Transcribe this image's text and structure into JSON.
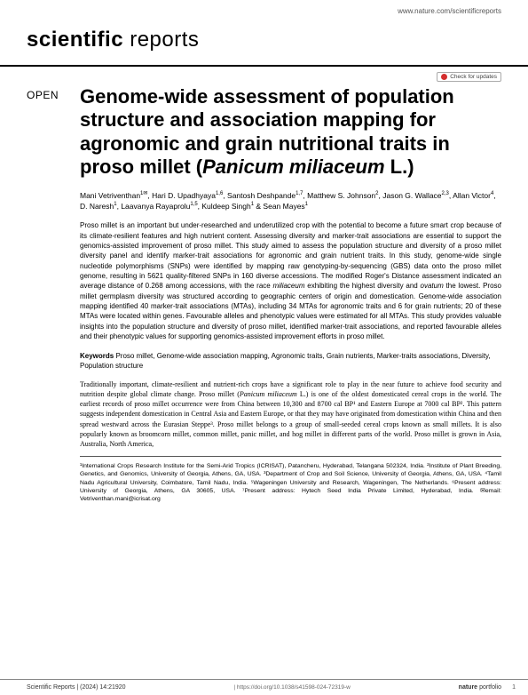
{
  "top_url": "www.nature.com/scientificreports",
  "journal": {
    "word1": "scientific",
    "word2": "reports"
  },
  "updates_label": "Check for updates",
  "open_tag": "OPEN",
  "title_plain": "Genome-wide assessment of population structure and association mapping for agronomic and grain nutritional traits in proso millet (",
  "title_species": "Panicum miliaceum",
  "title_tail": " L.)",
  "authors_html": "Mani Vetriventhan<sup>1✉</sup>, Hari D. Upadhyaya<sup>1,6</sup>, Santosh Deshpande<sup>1,7</sup>, Matthew S. Johnson<sup>2</sup>, Jason G. Wallace<sup>2,3</sup>, Allan Victor<sup>4</sup>, D. Naresh<sup>1</sup>, Laavanya Rayaprolu<sup>1,5</sup>, Kuldeep Singh<sup>1</sup> & Sean Mayes<sup>1</sup>",
  "abstract": "Proso millet is an important but under-researched and underutilized crop with the potential to become a future smart crop because of its climate-resilient features and high nutrient content. Assessing diversity and marker-trait associations are essential to support the genomics-assisted improvement of proso millet. This study aimed to assess the population structure and diversity of a proso millet diversity panel and identify marker-trait associations for agronomic and grain nutrient traits. In this study, genome-wide single nucleotide polymorphisms (SNPs) were identified by mapping raw genotyping-by-sequencing (GBS) data onto the proso millet genome, resulting in 5621 quality-filtered SNPs in 160 diverse accessions. The modified Roger's Distance assessment indicated an average distance of 0.268 among accessions, with the race ",
  "abstract_italic1": "miliaceum",
  "abstract_mid": " exhibiting the highest diversity and ",
  "abstract_italic2": "ovatum",
  "abstract_tail": " the lowest. Proso millet germplasm diversity was structured according to geographic centers of origin and domestication. Genome-wide association mapping identified 40 marker-trait associations (MTAs), including 34 MTAs for agronomic traits and 6 for grain nutrients; 20 of these MTAs were located within genes. Favourable alleles and phenotypic values were estimated for all MTAs. This study provides valuable insights into the population structure and diversity of proso millet, identified marker-trait associations, and reported favourable alleles and their phenotypic values for supporting genomics-assisted improvement efforts in proso millet.",
  "keywords_label": "Keywords",
  "keywords_text": " Proso millet, Genome-wide association mapping, Agronomic traits, Grain nutrients, Marker-traits associations, Diversity, Population structure",
  "body_p1a": "Traditionally important, climate-resilient and nutrient-rich crops have a significant role to play in the near future to achieve food security and nutrition despite global climate change. Proso millet (",
  "body_p1_species": "Panicum miliaceum",
  "body_p1b": " L.) is one of the oldest domesticated cereal crops in the world. The earliest records of proso millet occurrence were from China between 10,300 and 8700 cal BP¹ and Eastern Europe at 7000 cal BP². This pattern suggests independent domestication in Central Asia and Eastern Europe, or that they may have originated from domestication within China and then spread westward across the Eurasian Steppe³. Proso millet belongs to a group of small-seeded cereal crops known as small millets. It is also popularly known as broomcorn millet, common millet, panic millet, and hog millet in different parts of the world. Proso millet is grown in Asia, Australia, North America,",
  "affiliations": "¹International Crops Research Institute for the Semi-Arid Tropics (ICRISAT), Patancheru, Hyderabad, Telangana 502324, India. ²Institute of Plant Breeding, Genetics, and Genomics, University of Georgia, Athens, GA, USA. ³Department of Crop and Soil Science, University of Georgia, Athens, GA, USA. ⁴Tamil Nadu Agricultural University, Coimbatore, Tamil Nadu, India. ⁵Wageningen University and Research, Wageningen, The Netherlands. ⁶Present address: University of Georgia, Athens, GA 30605, USA. ⁷Present address: Hytech Seed India Private Limited, Hyderabad, India. ✉email: Vetriventhan.mani@icrisat.org",
  "footer": {
    "left": "Scientific Reports |        (2024) 14:21920",
    "center": "| https://doi.org/10.1038/s41598-024-72319-w",
    "right_brand": "nature",
    "right_word": "portfolio"
  },
  "page_number": "1"
}
